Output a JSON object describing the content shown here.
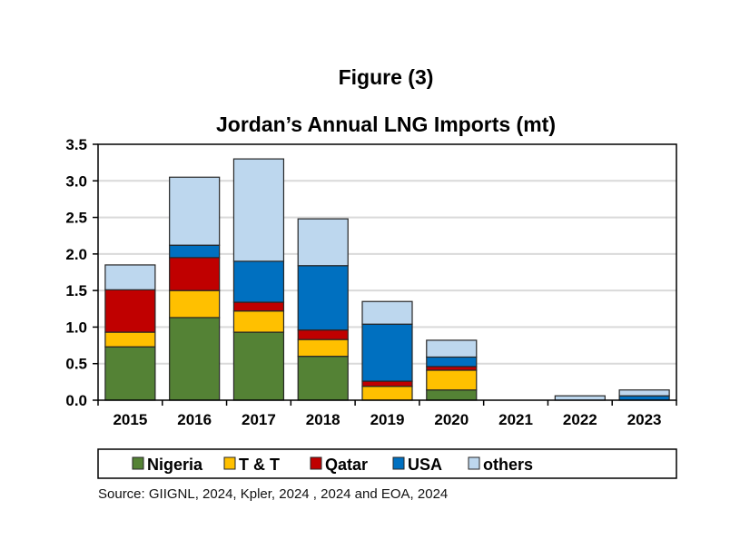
{
  "chart_data": {
    "type": "bar",
    "stacked": true,
    "title": "Jordan’s Annual LNG Imports (mt)",
    "figure_label": "Figure (3)",
    "xlabel": "",
    "ylabel": "",
    "ylim": [
      0,
      3.5
    ],
    "yticks": [
      "0.0",
      "0.5",
      "1.0",
      "1.5",
      "2.0",
      "2.5",
      "3.0",
      "3.5"
    ],
    "grid": true,
    "legend_placement": "bottom",
    "categories": [
      "2015",
      "2016",
      "2017",
      "2018",
      "2019",
      "2020",
      "2021",
      "2022",
      "2023"
    ],
    "series": [
      {
        "name": "Nigeria",
        "color": "#548235",
        "values": [
          0.73,
          1.13,
          0.93,
          0.6,
          0.0,
          0.14,
          0,
          0,
          0
        ]
      },
      {
        "name": "T & T",
        "color": "#FFC000",
        "values": [
          0.2,
          0.37,
          0.29,
          0.23,
          0.19,
          0.27,
          0,
          0,
          0
        ]
      },
      {
        "name": "Qatar",
        "color": "#C00000",
        "values": [
          0.58,
          0.45,
          0.12,
          0.13,
          0.07,
          0.05,
          0,
          0,
          0
        ]
      },
      {
        "name": "USA",
        "color": "#0070C0",
        "values": [
          0.0,
          0.17,
          0.56,
          0.88,
          0.78,
          0.13,
          0,
          0,
          0.06
        ]
      },
      {
        "name": "others",
        "color": "#BDD7EE",
        "values": [
          0.34,
          0.93,
          1.4,
          0.64,
          0.31,
          0.23,
          0,
          0.06,
          0.08
        ]
      }
    ]
  },
  "source": "Source: GIIGNL, 2024, Kpler, 2024 , 2024 and EOA, 2024"
}
